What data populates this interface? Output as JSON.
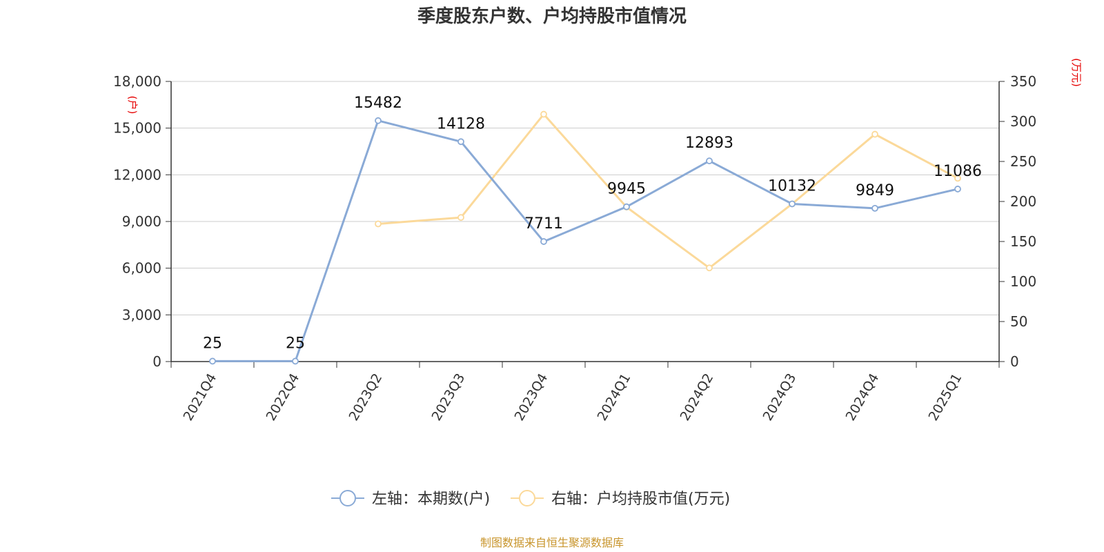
{
  "title": "季度股东户数、户均持股市值情况",
  "source": "制图数据来自恒生聚源数据库",
  "left_unit": "(户)",
  "right_unit": "(万元)",
  "chart_data": {
    "type": "line",
    "categories": [
      "2021Q4",
      "2022Q4",
      "2023Q2",
      "2023Q3",
      "2023Q4",
      "2024Q1",
      "2024Q2",
      "2024Q3",
      "2024Q4",
      "2025Q1"
    ],
    "y_left": {
      "ticks": [
        "0",
        "3,000",
        "6,000",
        "9,000",
        "12,000",
        "15,000",
        "18,000"
      ],
      "lim": [
        0,
        18000
      ]
    },
    "y_right": {
      "ticks": [
        "0",
        "50",
        "100",
        "150",
        "200",
        "250",
        "300",
        "350"
      ],
      "lim": [
        0,
        350
      ]
    },
    "grid": true,
    "legend_position": "bottom",
    "series": [
      {
        "name": "左轴：本期数(户)",
        "axis": "left",
        "color": "#8aaad6",
        "values": [
          25,
          25,
          15482,
          14128,
          7711,
          9945,
          12893,
          10132,
          9849,
          11086
        ],
        "labels": [
          "25",
          "25",
          "15482",
          "14128",
          "7711",
          "9945",
          "12893",
          "10132",
          "9849",
          "11086"
        ]
      },
      {
        "name": "右轴：户均持股市值(万元)",
        "axis": "right",
        "color": "#fbd99a",
        "values": [
          null,
          null,
          172,
          180,
          309,
          193,
          117,
          197,
          284,
          229
        ]
      }
    ]
  }
}
